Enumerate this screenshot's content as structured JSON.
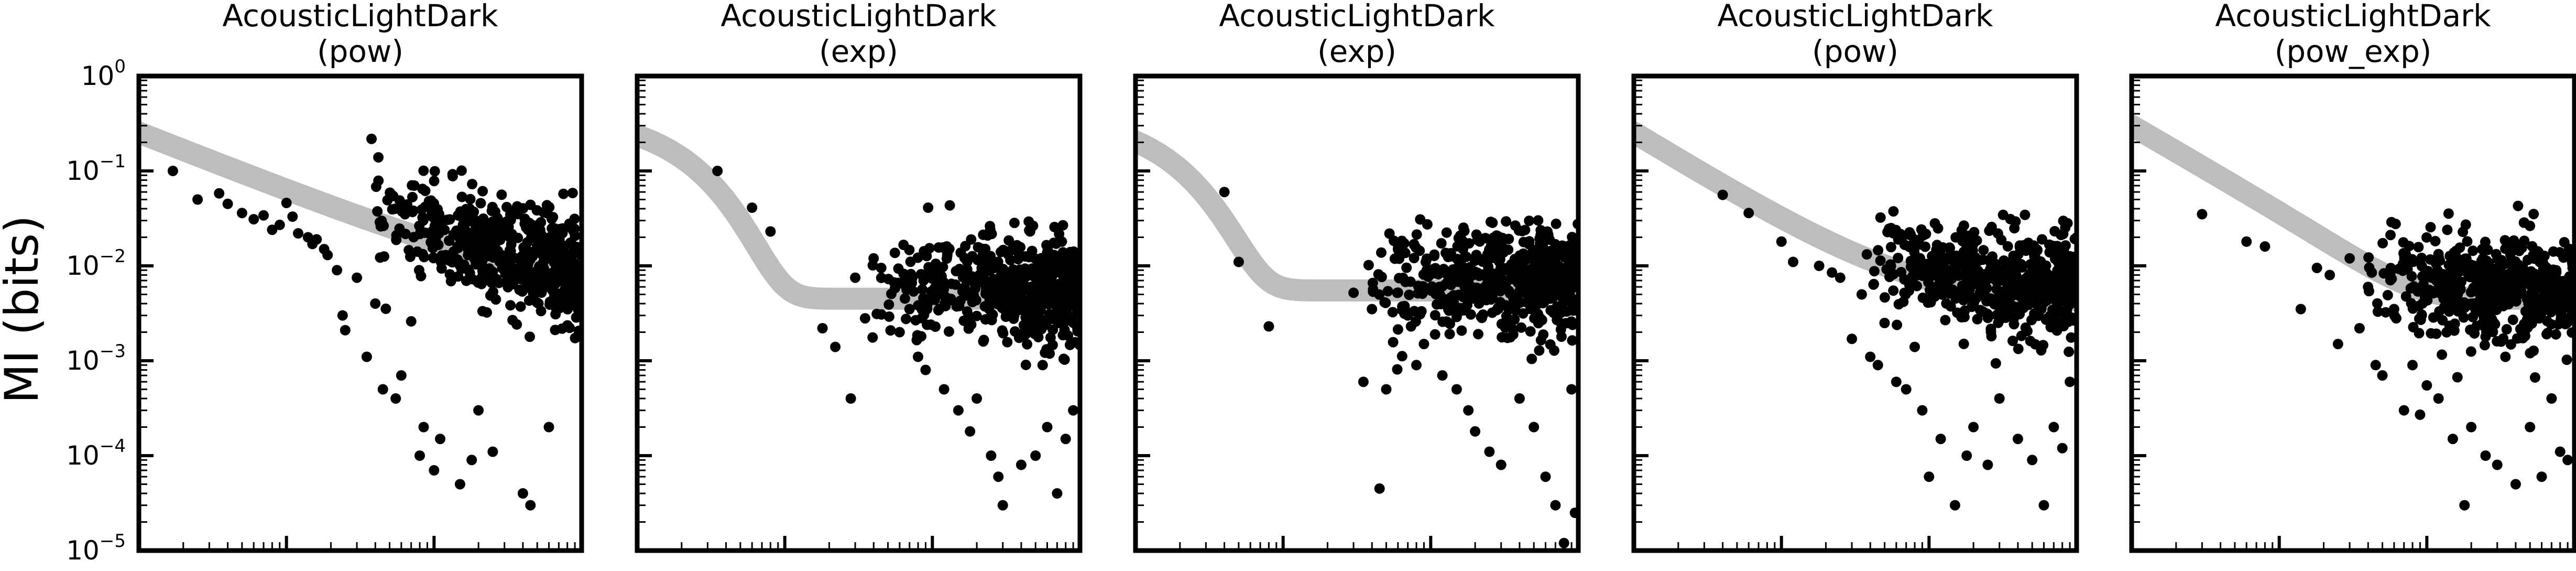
{
  "figure": {
    "ylabel": "MI (bits)",
    "yticks": [
      {
        "base": "10",
        "exp": "0"
      },
      {
        "base": "10",
        "exp": "−1"
      },
      {
        "base": "10",
        "exp": "−2"
      },
      {
        "base": "10",
        "exp": "−3"
      },
      {
        "base": "10",
        "exp": "−4"
      },
      {
        "base": "10",
        "exp": "−5"
      }
    ]
  },
  "chart_data": [
    {
      "type": "scatter",
      "title": "AcousticLightDark",
      "subtitle": "(pow)",
      "yscale": "log",
      "xscale": "log",
      "ylim": [
        1e-05,
        1
      ],
      "xlim": [
        1,
        1000
      ],
      "colors": {
        "points": "#000000",
        "fit": "#bdbdbd"
      },
      "fit": {
        "model": "pow",
        "a": 0.25,
        "b": 0.62,
        "c": 0.0035
      },
      "points": [
        [
          1.7,
          0.1
        ],
        [
          2.5,
          0.05
        ],
        [
          3.5,
          0.058
        ],
        [
          4,
          0.045
        ],
        [
          5,
          0.036
        ],
        [
          6,
          0.031
        ],
        [
          7,
          0.034
        ],
        [
          8,
          0.024
        ],
        [
          9,
          0.027
        ],
        [
          10,
          0.046
        ],
        [
          11,
          0.033
        ],
        [
          12,
          0.022
        ],
        [
          14,
          0.02
        ],
        [
          15,
          0.017
        ],
        [
          16,
          0.019
        ],
        [
          18,
          0.015
        ],
        [
          19,
          0.013
        ],
        [
          22,
          0.009
        ],
        [
          24,
          0.003
        ],
        [
          25,
          0.0021
        ],
        [
          30,
          0.0075
        ],
        [
          35,
          0.0011
        ],
        [
          40,
          0.004
        ],
        [
          45,
          0.0005
        ],
        [
          55,
          0.0004
        ],
        [
          60,
          0.0007
        ],
        [
          70,
          0.0026
        ],
        [
          80,
          0.0001
        ],
        [
          85,
          0.0002
        ],
        [
          100,
          7e-05
        ],
        [
          110,
          0.00015
        ],
        [
          150,
          5e-05
        ],
        [
          180,
          9e-05
        ],
        [
          200,
          0.0003
        ],
        [
          250,
          0.00011
        ],
        [
          400,
          4e-05
        ],
        [
          450,
          3e-05
        ],
        [
          600,
          0.0002
        ]
      ]
    },
    {
      "type": "scatter",
      "title": "AcousticLightDark",
      "subtitle": "(exp)",
      "yscale": "log",
      "xscale": "log",
      "ylim": [
        1e-05,
        1
      ],
      "xlim": [
        1,
        1000
      ],
      "colors": {
        "points": "#000000",
        "fit": "#bdbdbd"
      },
      "fit": {
        "model": "exp",
        "a": 0.4,
        "b": 0.55,
        "c": 0.0045
      },
      "points": [
        [
          3.5,
          0.1
        ],
        [
          6,
          0.041
        ],
        [
          8,
          0.023
        ],
        [
          18,
          0.0022
        ],
        [
          22,
          0.0014
        ],
        [
          28,
          0.0004
        ],
        [
          30,
          0.0075
        ],
        [
          35,
          0.0028
        ],
        [
          40,
          0.012
        ],
        [
          45,
          0.0095
        ],
        [
          60,
          0.002
        ],
        [
          70,
          0.0035
        ],
        [
          80,
          0.0011
        ],
        [
          90,
          0.0008
        ],
        [
          120,
          0.0005
        ],
        [
          150,
          0.0003
        ],
        [
          180,
          0.00018
        ],
        [
          200,
          0.0004
        ],
        [
          250,
          0.0001
        ],
        [
          280,
          6e-05
        ],
        [
          300,
          3e-05
        ],
        [
          400,
          8e-05
        ],
        [
          500,
          0.0001
        ],
        [
          600,
          0.0002
        ],
        [
          700,
          4e-05
        ],
        [
          800,
          0.00015
        ],
        [
          900,
          0.0003
        ]
      ]
    },
    {
      "type": "scatter",
      "title": "AcousticLightDark",
      "subtitle": "(exp)",
      "yscale": "log",
      "xscale": "log",
      "ylim": [
        1e-05,
        1
      ],
      "xlim": [
        1,
        1000
      ],
      "colors": {
        "points": "#000000",
        "fit": "#bdbdbd"
      },
      "fit": {
        "model": "exp",
        "a": 0.4,
        "b": 0.7,
        "c": 0.0055
      },
      "points": [
        [
          4,
          0.06
        ],
        [
          5,
          0.011
        ],
        [
          8,
          0.0023
        ],
        [
          30,
          0.0052
        ],
        [
          35,
          0.0006
        ],
        [
          40,
          0.0035
        ],
        [
          45,
          4.5e-05
        ],
        [
          50,
          0.0005
        ],
        [
          60,
          0.015
        ],
        [
          70,
          0.003
        ],
        [
          80,
          0.0009
        ],
        [
          90,
          0.0015
        ],
        [
          120,
          0.0007
        ],
        [
          150,
          0.0005
        ],
        [
          180,
          0.0003
        ],
        [
          200,
          0.00018
        ],
        [
          250,
          0.00011
        ],
        [
          300,
          8e-05
        ],
        [
          400,
          0.0004
        ],
        [
          500,
          0.0002
        ],
        [
          600,
          6e-05
        ],
        [
          700,
          3e-05
        ],
        [
          800,
          1.2e-05
        ],
        [
          900,
          0.0005
        ],
        [
          950,
          2.5e-05
        ]
      ]
    },
    {
      "type": "scatter",
      "title": "AcousticLightDark",
      "subtitle": "(pow)",
      "yscale": "log",
      "xscale": "log",
      "ylim": [
        1e-05,
        1
      ],
      "xlim": [
        1,
        1000
      ],
      "colors": {
        "points": "#000000",
        "fit": "#bdbdbd"
      },
      "fit": {
        "model": "pow",
        "a": 0.25,
        "b": 0.95,
        "c": 0.004
      },
      "points": [
        [
          4,
          0.056
        ],
        [
          6,
          0.036
        ],
        [
          10,
          0.018
        ],
        [
          12,
          0.011
        ],
        [
          18,
          0.01
        ],
        [
          22,
          0.0085
        ],
        [
          25,
          0.0075
        ],
        [
          30,
          0.0017
        ],
        [
          35,
          0.005
        ],
        [
          40,
          0.0011
        ],
        [
          45,
          0.0009
        ],
        [
          50,
          0.0025
        ],
        [
          60,
          0.0006
        ],
        [
          70,
          0.0005
        ],
        [
          80,
          0.0014
        ],
        [
          90,
          0.0003
        ],
        [
          100,
          6e-05
        ],
        [
          120,
          0.00015
        ],
        [
          150,
          3e-05
        ],
        [
          180,
          0.0001
        ],
        [
          200,
          0.0002
        ],
        [
          250,
          8e-05
        ],
        [
          300,
          0.0004
        ],
        [
          400,
          0.00015
        ],
        [
          500,
          9e-05
        ],
        [
          600,
          3e-05
        ],
        [
          700,
          0.0002
        ],
        [
          800,
          0.00012
        ],
        [
          900,
          0.0006
        ]
      ]
    },
    {
      "type": "scatter",
      "title": "AcousticLightDark",
      "subtitle": "(pow_exp)",
      "yscale": "log",
      "xscale": "log",
      "ylim": [
        1e-05,
        1
      ],
      "xlim": [
        1,
        1000
      ],
      "colors": {
        "points": "#000000",
        "fit": "#bdbdbd"
      },
      "fit": {
        "model": "pow_exp",
        "a": 0.3,
        "b": 0.9,
        "c": 0.0045
      },
      "points": [
        [
          3,
          0.035
        ],
        [
          6,
          0.018
        ],
        [
          8,
          0.016
        ],
        [
          14,
          0.0035
        ],
        [
          18,
          0.0095
        ],
        [
          22,
          0.008
        ],
        [
          25,
          0.0015
        ],
        [
          30,
          0.012
        ],
        [
          35,
          0.0022
        ],
        [
          40,
          0.006
        ],
        [
          45,
          0.0009
        ],
        [
          50,
          0.0007
        ],
        [
          60,
          0.0035
        ],
        [
          70,
          0.0003
        ],
        [
          80,
          0.0009
        ],
        [
          90,
          0.00027
        ],
        [
          100,
          0.00055
        ],
        [
          120,
          0.0004
        ],
        [
          150,
          0.00015
        ],
        [
          180,
          3e-05
        ],
        [
          200,
          0.0002
        ],
        [
          250,
          0.0001
        ],
        [
          300,
          8e-05
        ],
        [
          400,
          5e-05
        ],
        [
          500,
          0.0002
        ],
        [
          600,
          6e-05
        ],
        [
          700,
          0.0004
        ],
        [
          800,
          0.00011
        ],
        [
          900,
          9e-05
        ]
      ]
    }
  ]
}
